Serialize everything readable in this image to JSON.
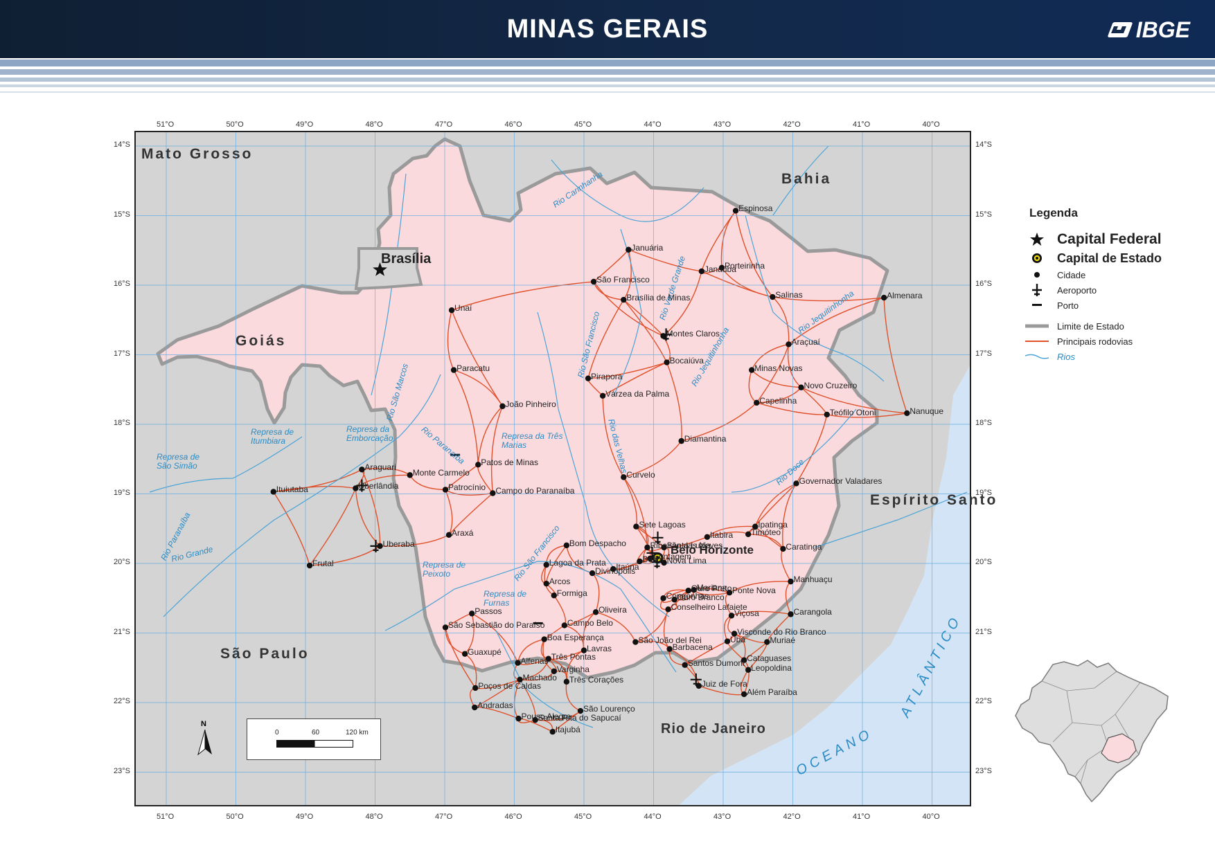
{
  "header": {
    "title": "MINAS GERAIS",
    "logo_text": "IBGE"
  },
  "axes": {
    "longitudes": [
      "51°O",
      "50°O",
      "49°O",
      "48°O",
      "47°O",
      "46°O",
      "45°O",
      "44°O",
      "43°O",
      "42°O",
      "41°O",
      "40°O"
    ],
    "latitudes": [
      "14°S",
      "15°S",
      "16°S",
      "17°S",
      "18°S",
      "19°S",
      "20°S",
      "21°S",
      "22°S",
      "23°S"
    ]
  },
  "legend": {
    "title": "Legenda",
    "items": [
      {
        "label": "Capital Federal",
        "symbol": "star-icon"
      },
      {
        "label": "Capital de Estado",
        "symbol": "capital-icon"
      },
      {
        "label": "Cidade",
        "symbol": "city-dot-icon"
      },
      {
        "label": "Aeroporto",
        "symbol": "airport-icon"
      },
      {
        "label": "Porto",
        "symbol": "port-icon"
      },
      {
        "label": "Limite de Estado",
        "symbol": "state-limit-line"
      },
      {
        "label": "Principais rodovias",
        "symbol": "highway-line"
      },
      {
        "label": "Rios",
        "symbol": "river-line"
      }
    ]
  },
  "colors": {
    "mg_fill": "#fadadd",
    "road": "#e0502a",
    "outside": "#d4d4d4",
    "ocean": "#d2e4f5",
    "river": "#4aa3d6",
    "border": "#9a9a9a",
    "header": "#13294a"
  },
  "states": {
    "mato_grosso": "Mato Grosso",
    "goias": "Goiás",
    "bahia": "Bahia",
    "espirito_santo": "Espírito Santo",
    "sao_paulo": "São Paulo",
    "rio_de_janeiro": "Rio de Janeiro",
    "brasilia": "Brasília",
    "belo_horizonte": "Belo Horizonte"
  },
  "ocean": {
    "oceano": "OCEANO",
    "atlantico": "ATLÂNTICO"
  },
  "cities": [
    {
      "name": "Espinosa",
      "lon": -42.82,
      "lat": -14.93
    },
    {
      "name": "Januária",
      "lon": -44.36,
      "lat": -15.49
    },
    {
      "name": "Porteirinha",
      "lon": -43.02,
      "lat": -15.75
    },
    {
      "name": "Janaúba",
      "lon": -43.31,
      "lat": -15.8
    },
    {
      "name": "São Francisco",
      "lon": -44.86,
      "lat": -15.95
    },
    {
      "name": "Salinas",
      "lon": -42.29,
      "lat": -16.17
    },
    {
      "name": "Almenara",
      "lon": -40.69,
      "lat": -16.18
    },
    {
      "name": "Brasília de Minas",
      "lon": -44.43,
      "lat": -16.21
    },
    {
      "name": "Unaí",
      "lon": -46.9,
      "lat": -16.36
    },
    {
      "name": "Montes Claros",
      "lon": -43.86,
      "lat": -16.73
    },
    {
      "name": "Araçuaí",
      "lon": -42.06,
      "lat": -16.85
    },
    {
      "name": "Bocaiúva",
      "lon": -43.81,
      "lat": -17.11
    },
    {
      "name": "Minas Novas",
      "lon": -42.59,
      "lat": -17.22
    },
    {
      "name": "Paracatu",
      "lon": -46.87,
      "lat": -17.22
    },
    {
      "name": "Pirapora",
      "lon": -44.94,
      "lat": -17.34
    },
    {
      "name": "Novo Cruzeiro",
      "lon": -41.88,
      "lat": -17.47
    },
    {
      "name": "Várzea da Palma",
      "lon": -44.73,
      "lat": -17.59
    },
    {
      "name": "Capelinha",
      "lon": -42.52,
      "lat": -17.69
    },
    {
      "name": "João Pinheiro",
      "lon": -46.17,
      "lat": -17.74
    },
    {
      "name": "Teófilo Otoni",
      "lon": -41.51,
      "lat": -17.86
    },
    {
      "name": "Nanuque",
      "lon": -40.36,
      "lat": -17.84
    },
    {
      "name": "Diamantina",
      "lon": -43.6,
      "lat": -18.24
    },
    {
      "name": "Patos de Minas",
      "lon": -46.52,
      "lat": -18.58
    },
    {
      "name": "Araguari",
      "lon": -48.19,
      "lat": -18.65
    },
    {
      "name": "Monte Carmelo",
      "lon": -47.5,
      "lat": -18.73
    },
    {
      "name": "Curvelo",
      "lon": -44.43,
      "lat": -18.76
    },
    {
      "name": "Governador Valadares",
      "lon": -41.95,
      "lat": -18.85
    },
    {
      "name": "Ituiutaba",
      "lon": -49.46,
      "lat": -18.97
    },
    {
      "name": "Uberlândia",
      "lon": -48.28,
      "lat": -18.92
    },
    {
      "name": "Patrocínio",
      "lon": -46.99,
      "lat": -18.94
    },
    {
      "name": "Campo do Paranaíba",
      "lon": -46.31,
      "lat": -18.99
    },
    {
      "name": "Sete Lagoas",
      "lon": -44.25,
      "lat": -19.47
    },
    {
      "name": "Ipatinga",
      "lon": -42.54,
      "lat": -19.47
    },
    {
      "name": "Timóteo",
      "lon": -42.64,
      "lat": -19.58
    },
    {
      "name": "Itabira",
      "lon": -43.23,
      "lat": -19.62
    },
    {
      "name": "Araxá",
      "lon": -46.94,
      "lat": -19.59
    },
    {
      "name": "Bom Despacho",
      "lon": -45.25,
      "lat": -19.74
    },
    {
      "name": "Uberaba",
      "lon": -47.93,
      "lat": -19.75
    },
    {
      "name": "Ribeirão das Neves",
      "lon": -44.09,
      "lat": -19.77
    },
    {
      "name": "Santa Luzia",
      "lon": -43.85,
      "lat": -19.77
    },
    {
      "name": "Caratinga",
      "lon": -42.14,
      "lat": -19.79
    },
    {
      "name": "Contagem",
      "lon": -44.05,
      "lat": -19.93
    },
    {
      "name": "Lagoa da Prata",
      "lon": -45.54,
      "lat": -20.02
    },
    {
      "name": "Frutal",
      "lon": -48.94,
      "lat": -20.03
    },
    {
      "name": "Itaúna",
      "lon": -44.58,
      "lat": -20.08
    },
    {
      "name": "Betim",
      "lon": -44.2,
      "lat": -19.97
    },
    {
      "name": "Nova Lima",
      "lon": -43.85,
      "lat": -19.99
    },
    {
      "name": "Divinópolis",
      "lon": -44.88,
      "lat": -20.14
    },
    {
      "name": "Manhuaçu",
      "lon": -42.03,
      "lat": -20.26
    },
    {
      "name": "Arcos",
      "lon": -45.54,
      "lat": -20.29
    },
    {
      "name": "Ouro Preto",
      "lon": -43.5,
      "lat": -20.39
    },
    {
      "name": "Mariana",
      "lon": -43.42,
      "lat": -20.38
    },
    {
      "name": "Ponte Nova",
      "lon": -42.91,
      "lat": -20.42
    },
    {
      "name": "Formiga",
      "lon": -45.43,
      "lat": -20.46
    },
    {
      "name": "Congonhas",
      "lon": -43.86,
      "lat": -20.5
    },
    {
      "name": "Ouro Branco",
      "lon": -43.7,
      "lat": -20.52
    },
    {
      "name": "Oliveira",
      "lon": -44.83,
      "lat": -20.7
    },
    {
      "name": "Conselheiro Lafaiete",
      "lon": -43.79,
      "lat": -20.66
    },
    {
      "name": "Carangola",
      "lon": -42.03,
      "lat": -20.73
    },
    {
      "name": "Passos",
      "lon": -46.61,
      "lat": -20.72
    },
    {
      "name": "Viçosa",
      "lon": -42.88,
      "lat": -20.75
    },
    {
      "name": "Campo Belo",
      "lon": -45.28,
      "lat": -20.89
    },
    {
      "name": "São Sebastião do Paraíso",
      "lon": -46.99,
      "lat": -20.92
    },
    {
      "name": "Visconde do Rio Branco",
      "lon": -42.84,
      "lat": -21.01
    },
    {
      "name": "Boa Esperança",
      "lon": -45.57,
      "lat": -21.09
    },
    {
      "name": "São João del Rei",
      "lon": -44.26,
      "lat": -21.13
    },
    {
      "name": "Ubá",
      "lon": -42.94,
      "lat": -21.12
    },
    {
      "name": "Muriaé",
      "lon": -42.37,
      "lat": -21.13
    },
    {
      "name": "Lavras",
      "lon": -45.0,
      "lat": -21.25
    },
    {
      "name": "Guaxupé",
      "lon": -46.71,
      "lat": -21.3
    },
    {
      "name": "Barbacena",
      "lon": -43.77,
      "lat": -21.23
    },
    {
      "name": "Três Pontas",
      "lon": -45.51,
      "lat": -21.37
    },
    {
      "name": "Alfenas",
      "lon": -45.95,
      "lat": -21.43
    },
    {
      "name": "Santos Dumont",
      "lon": -43.55,
      "lat": -21.46
    },
    {
      "name": "Cataguases",
      "lon": -42.7,
      "lat": -21.39
    },
    {
      "name": "Varginha",
      "lon": -45.43,
      "lat": -21.55
    },
    {
      "name": "Leopoldina",
      "lon": -42.64,
      "lat": -21.53
    },
    {
      "name": "Machado",
      "lon": -45.92,
      "lat": -21.67
    },
    {
      "name": "Três Corações",
      "lon": -45.25,
      "lat": -21.7
    },
    {
      "name": "Juiz de Fora",
      "lon": -43.35,
      "lat": -21.76
    },
    {
      "name": "Poços de Caldas",
      "lon": -46.56,
      "lat": -21.79
    },
    {
      "name": "Além Paraíba",
      "lon": -42.7,
      "lat": -21.88
    },
    {
      "name": "Andradas",
      "lon": -46.57,
      "lat": -22.07
    },
    {
      "name": "São Lourenço",
      "lon": -45.05,
      "lat": -22.12
    },
    {
      "name": "Pouso Alegre",
      "lon": -45.94,
      "lat": -22.23
    },
    {
      "name": "Santa Rita do Sapucaí",
      "lon": -45.7,
      "lat": -22.25
    },
    {
      "name": "Itajubá",
      "lon": -45.45,
      "lat": -22.42
    }
  ],
  "waters": {
    "represa_sao_simao": "Represa de São Simão",
    "represa_itumbiara": "Represa de Itumbiara",
    "represa_emborcacao": "Represa da Emborcação",
    "represa_tres_marias": "Represa da Três Marias",
    "represa_peixoto": "Represa de Peixoto",
    "represa_furnas": "Represa de Furnas",
    "rio_carinhanha": "Rio Carinhanha",
    "rio_verde_grande": "Rio Verde Grande",
    "rio_sao_francisco": "Rio São Francisco",
    "rio_sao_marcos": "Rio São Marcos",
    "rio_paranaiba": "Rio Paranaíba",
    "rio_paranaiba_left": "Rio Paranaíba",
    "rio_grande": "Rio Grande",
    "rio_das_velhas": "Rio das Velhas",
    "rio_jequitinhonha": "Rio Jequitinhonha",
    "rio_jequitinhonha_2": "Rio Jequitinhonha",
    "rio_doce": "Rio Doce",
    "rio_sao_francisco_2": "Rio São Francisco"
  },
  "scale": {
    "t0": "0",
    "t1": "60",
    "t2": "120 km"
  },
  "north": "N"
}
